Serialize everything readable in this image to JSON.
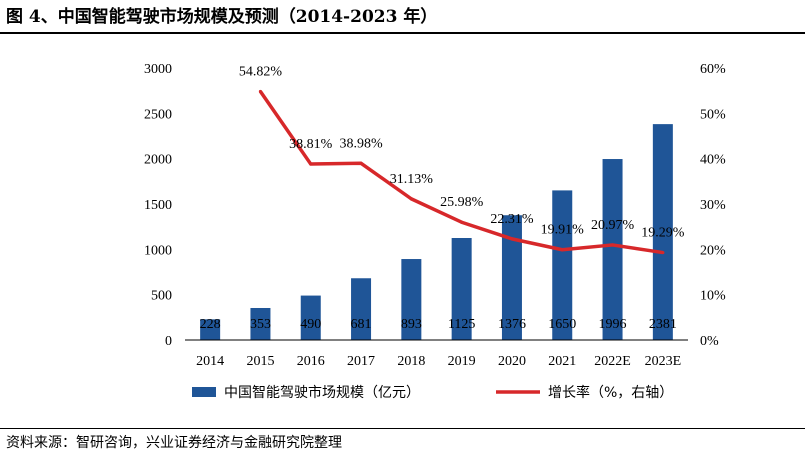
{
  "title": "图 4、中国智能驾驶市场规模及预测（2014-2023 年）",
  "source": "资料来源：智研咨询，兴业证券经济与金融研究院整理",
  "colors": {
    "bar": "#1f5597",
    "line": "#d7282a"
  },
  "chart_data": {
    "type": "bar+line",
    "categories": [
      "2014",
      "2015",
      "2016",
      "2017",
      "2018",
      "2019",
      "2020",
      "2021",
      "2022E",
      "2023E"
    ],
    "series": [
      {
        "name": "中国智能驾驶市场规模（亿元）",
        "type": "bar",
        "axis": "left",
        "values": [
          228,
          353,
          490,
          681,
          893,
          1125,
          1376,
          1650,
          1996,
          2381
        ],
        "labels": [
          "228",
          "353",
          "490",
          "681",
          "893",
          "1125",
          "1376",
          "1650",
          "1996",
          "2381"
        ]
      },
      {
        "name": "增长率（%，右轴）",
        "type": "line",
        "axis": "right",
        "values": [
          null,
          54.82,
          38.81,
          38.98,
          31.13,
          25.98,
          22.31,
          19.91,
          20.97,
          19.29
        ],
        "labels": [
          "",
          "54.82%",
          "38.81%",
          "38.98%",
          "31.13%",
          "25.98%",
          "22.31%",
          "19.91%",
          "20.97%",
          "19.29%"
        ]
      }
    ],
    "y_left": {
      "min": 0,
      "max": 3000,
      "ticks": [
        "0",
        "500",
        "1000",
        "1500",
        "2000",
        "2500",
        "3000"
      ]
    },
    "y_right": {
      "min": 0,
      "max": 60,
      "ticks": [
        "0%",
        "10%",
        "20%",
        "30%",
        "40%",
        "50%",
        "60%"
      ]
    },
    "legend_position": "bottom",
    "grid": false
  }
}
